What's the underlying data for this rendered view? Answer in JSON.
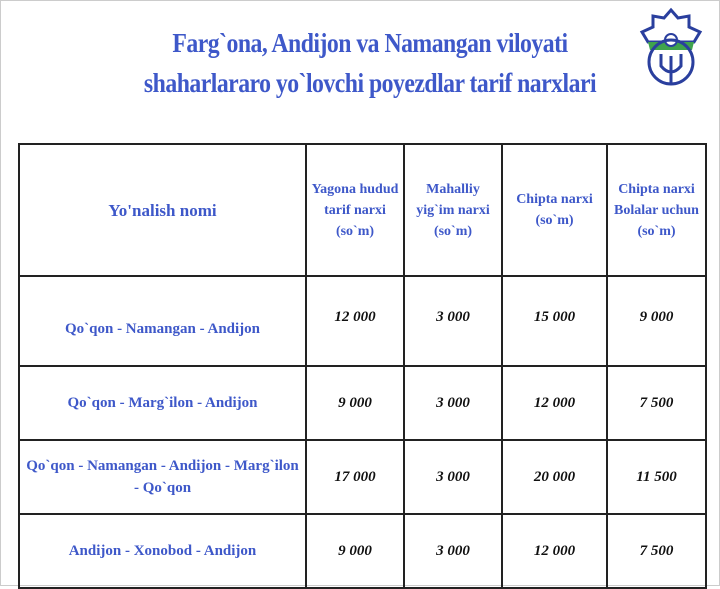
{
  "title": {
    "line1": "Farg`ona, Andijon va Namangan viloyati",
    "line2": "shaharlararo yo`lovchi poyezdlar tarif narxlari"
  },
  "logo": {
    "text": "O'ZTEMIRYO'LYO'LOVCHI",
    "color": "#2a3f9e"
  },
  "table": {
    "headers": [
      "Yo'nalish nomi",
      "Yagona hudud tarif narxi (so`m)",
      "Mahalliy yig`im narxi (so`m)",
      "Chipta narxi (so`m)",
      "Chipta narxi Bolalar uchun (so`m)"
    ],
    "rows": [
      {
        "route": "Qo`qon - Namangan - Andijon",
        "tariff": "12 000",
        "local_fee": "3 000",
        "ticket": "15 000",
        "children": "9 000"
      },
      {
        "route": "Qo`qon - Marg`ilon - Andijon",
        "tariff": "9 000",
        "local_fee": "3 000",
        "ticket": "12 000",
        "children": "7 500"
      },
      {
        "route": "Qo`qon - Namangan - Andijon - Marg`ilon - Qo`qon",
        "tariff": "17 000",
        "local_fee": "3 000",
        "ticket": "20 000",
        "children": "11 500"
      },
      {
        "route": "Andijon - Xonobod - Andijon",
        "tariff": "9 000",
        "local_fee": "3 000",
        "ticket": "12 000",
        "children": "7 500"
      }
    ]
  },
  "colors": {
    "heading": "#3e58c9",
    "values": "#111111"
  }
}
